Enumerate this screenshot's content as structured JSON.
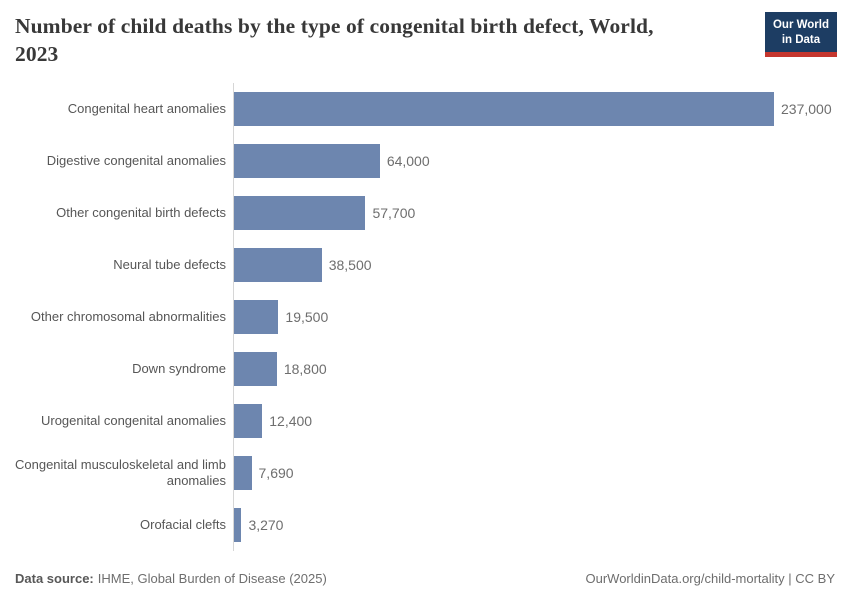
{
  "header": {
    "title_lines": [
      "Number of child deaths by the type of congenital birth defect, World,",
      "2023"
    ],
    "logo": {
      "line1": "Our World",
      "line2": "in Data",
      "bg_color": "#1d3d63",
      "accent_color": "#c5362e"
    }
  },
  "chart_data": {
    "type": "bar",
    "orientation": "horizontal",
    "title": "Number of child deaths by the type of congenital birth defect, World, 2023",
    "categories": [
      "Congenital heart anomalies",
      "Digestive congenital anomalies",
      "Other congenital birth defects",
      "Neural tube defects",
      "Other chromosomal abnormalities",
      "Down syndrome",
      "Urogenital congenital anomalies",
      "Congenital musculoskeletal and limb anomalies",
      "Orofacial clefts"
    ],
    "values": [
      237000,
      64000,
      57700,
      38500,
      19500,
      18800,
      12400,
      7690,
      3270
    ],
    "value_labels": [
      "237,000",
      "64,000",
      "57,700",
      "38,500",
      "19,500",
      "18,800",
      "12,400",
      "7,690",
      "3,270"
    ],
    "xlim": [
      0,
      237000
    ],
    "bar_color": "#6d86af",
    "grid": false,
    "legend": "none"
  },
  "footer": {
    "datasource_label": "Data source:",
    "datasource_value": "IHME, Global Burden of Disease (2025)",
    "right_text": "OurWorldinData.org/child-mortality | CC BY"
  }
}
